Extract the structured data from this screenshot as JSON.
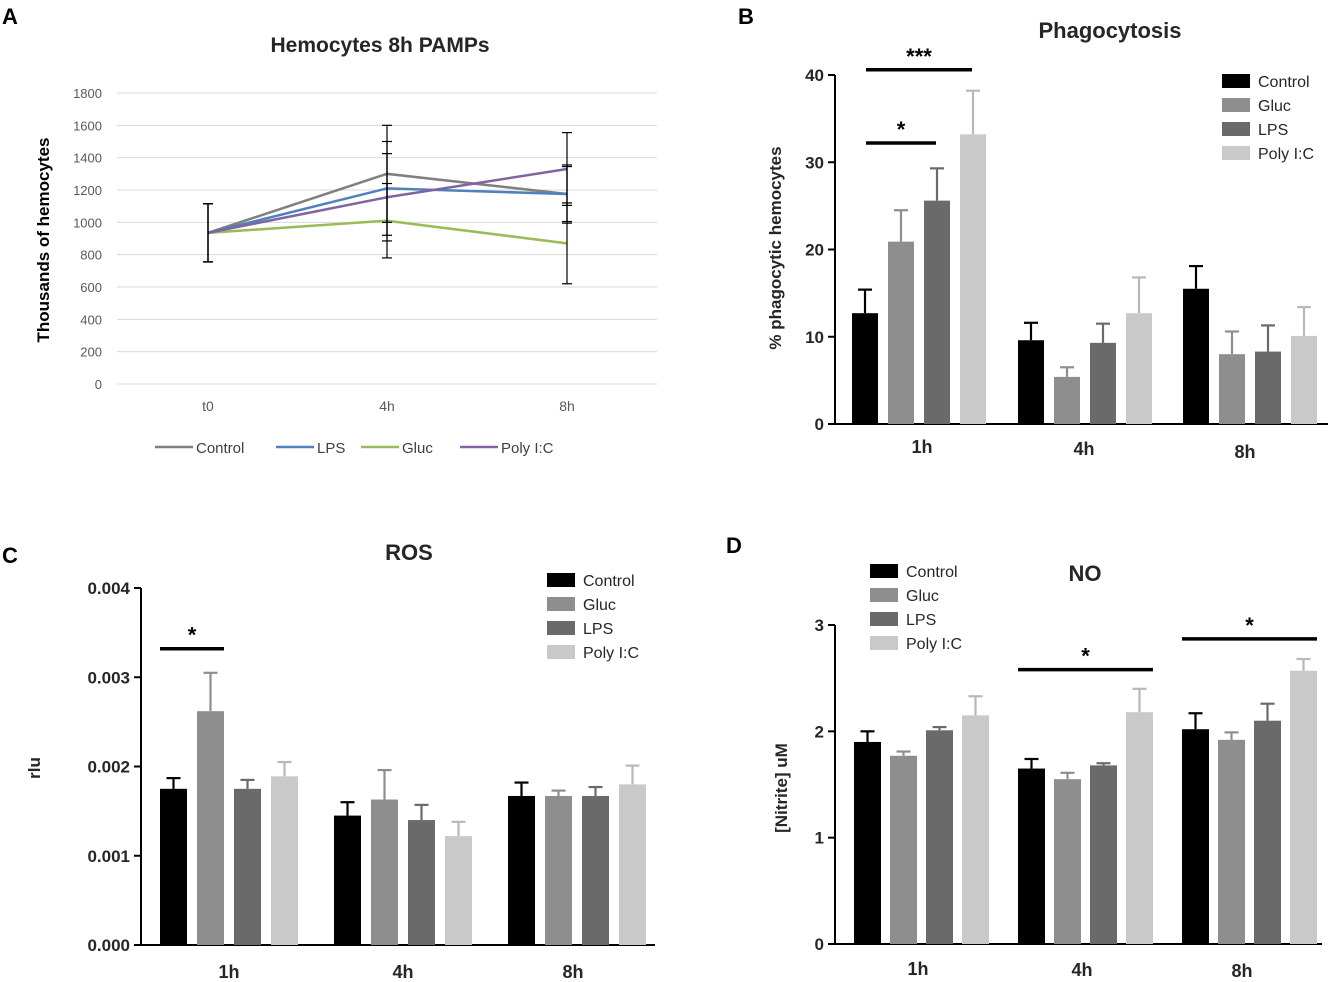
{
  "chart_data": [
    {
      "panel_label": "A",
      "type": "line",
      "title": "Hemocytes 8h PAMPs",
      "xlabel": "",
      "ylabel": "Thousands of hemocytes",
      "categories": [
        "t0",
        "4h",
        "8h"
      ],
      "ylim": [
        0,
        1800
      ],
      "yticks": [
        0,
        200,
        400,
        600,
        800,
        1000,
        1200,
        1400,
        1600,
        1800
      ],
      "ytick_labels": [
        "0",
        "200",
        "400",
        "600",
        "800",
        "1000",
        "1200",
        "1400",
        "1600",
        "1800"
      ],
      "grid": true,
      "legend_position": "bottom",
      "series": [
        {
          "name": "Control",
          "color": "#7f7f7f",
          "values": [
            935,
            1300,
            1175
          ],
          "err": [
            180,
            300,
            180
          ]
        },
        {
          "name": "LPS",
          "color": "#4f81bd",
          "values": [
            935,
            1210,
            1175
          ],
          "err": [
            180,
            290,
            170
          ]
        },
        {
          "name": "Gluc",
          "color": "#9bbb59",
          "values": [
            935,
            1010,
            870
          ],
          "err": [
            180,
            230,
            250
          ]
        },
        {
          "name": "Poly I:C",
          "color": "#8064a2",
          "values": [
            935,
            1155,
            1330
          ],
          "err": [
            180,
            270,
            225
          ]
        }
      ]
    },
    {
      "panel_label": "B",
      "type": "bar",
      "title": "Phagocytosis",
      "xlabel": "",
      "ylabel": "% phagocytic hemocytes",
      "categories": [
        "1h",
        "4h",
        "8h"
      ],
      "ylim": [
        0,
        40
      ],
      "yticks": [
        0,
        10,
        20,
        30,
        40
      ],
      "ytick_labels": [
        "0",
        "10",
        "20",
        "30",
        "40"
      ],
      "legend_position": "top-right",
      "series": [
        {
          "name": "Control",
          "color": "#000000",
          "values": [
            12.7,
            9.6,
            15.5
          ],
          "err": [
            2.7,
            2.0,
            2.6
          ]
        },
        {
          "name": "Gluc",
          "color": "#8e8e8e",
          "values": [
            20.9,
            5.4,
            8.0
          ],
          "err": [
            3.6,
            1.1,
            2.6
          ]
        },
        {
          "name": "LPS",
          "color": "#6a6a6a",
          "values": [
            25.6,
            9.3,
            8.3
          ],
          "err": [
            3.7,
            2.2,
            3.0
          ]
        },
        {
          "name": "Poly I:C",
          "color": "#c9c9c9",
          "values": [
            33.2,
            12.7,
            10.1
          ],
          "err": [
            5.0,
            4.1,
            3.3
          ]
        }
      ],
      "significance": [
        {
          "label": "***",
          "from": 0,
          "to": 3,
          "y": 40.6
        },
        {
          "label": "*",
          "from": 0,
          "to": 2,
          "y": 32.2
        }
      ]
    },
    {
      "panel_label": "C",
      "type": "bar",
      "title": "ROS",
      "xlabel": "",
      "ylabel": "rlu",
      "categories": [
        "1h",
        "4h",
        "8h"
      ],
      "ylim": [
        0,
        0.004
      ],
      "yticks": [
        0,
        0.001,
        0.002,
        0.003,
        0.004
      ],
      "ytick_labels": [
        "0.000",
        "0.001",
        "0.002",
        "0.003",
        "0.004"
      ],
      "legend_position": "top-right",
      "series": [
        {
          "name": "Control",
          "color": "#000000",
          "values": [
            0.00175,
            0.00145,
            0.00167
          ],
          "err": [
            0.00012,
            0.00015,
            0.00015
          ]
        },
        {
          "name": "Gluc",
          "color": "#8e8e8e",
          "values": [
            0.00262,
            0.00163,
            0.00167
          ],
          "err": [
            0.00043,
            0.00033,
            6e-05
          ]
        },
        {
          "name": "LPS",
          "color": "#6a6a6a",
          "values": [
            0.00175,
            0.0014,
            0.00167
          ],
          "err": [
            0.0001,
            0.00017,
            0.0001
          ]
        },
        {
          "name": "Poly I:C",
          "color": "#c9c9c9",
          "values": [
            0.00189,
            0.00122,
            0.0018
          ],
          "err": [
            0.00016,
            0.00016,
            0.00021
          ]
        }
      ],
      "significance": [
        {
          "label": "*",
          "from": 0,
          "to": 1,
          "y": 0.00332
        }
      ]
    },
    {
      "panel_label": "D",
      "type": "bar",
      "title": "NO",
      "xlabel": "",
      "ylabel": "[Nitrite] uM",
      "categories": [
        "1h",
        "4h",
        "8h"
      ],
      "ylim": [
        0,
        3
      ],
      "yticks": [
        0,
        1,
        2,
        3
      ],
      "ytick_labels": [
        "0",
        "1",
        "2",
        "3"
      ],
      "legend_position": "top-left",
      "series": [
        {
          "name": "Control",
          "color": "#000000",
          "values": [
            1.9,
            1.65,
            2.02
          ],
          "err": [
            0.1,
            0.09,
            0.15
          ]
        },
        {
          "name": "Gluc",
          "color": "#8e8e8e",
          "values": [
            1.77,
            1.55,
            1.92
          ],
          "err": [
            0.04,
            0.06,
            0.07
          ]
        },
        {
          "name": "LPS",
          "color": "#6a6a6a",
          "values": [
            2.01,
            1.68,
            2.1
          ],
          "err": [
            0.03,
            0.02,
            0.16
          ]
        },
        {
          "name": "Poly I:C",
          "color": "#c9c9c9",
          "values": [
            2.15,
            2.18,
            2.57
          ],
          "err": [
            0.18,
            0.22,
            0.11
          ]
        }
      ],
      "significance": [
        {
          "label": "*",
          "from": 4,
          "to": 7,
          "y": 2.58
        },
        {
          "label": "*",
          "from": 8,
          "to": 11,
          "y": 2.87
        }
      ]
    }
  ]
}
